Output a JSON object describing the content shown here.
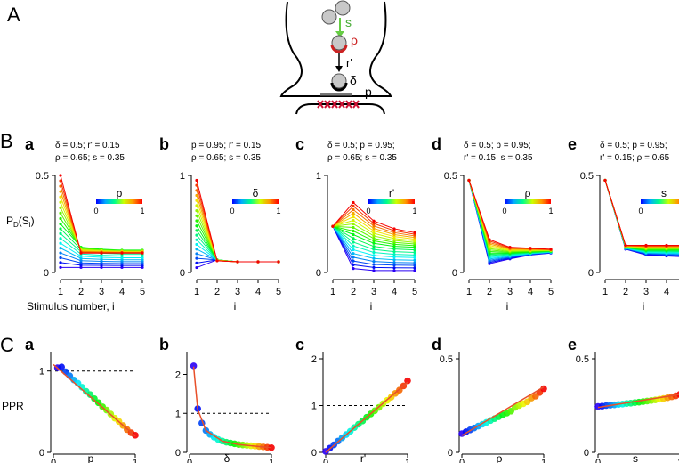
{
  "figure": {
    "panel_letters": {
      "A": "A",
      "B": "B",
      "C": "C"
    },
    "schematic": {
      "s": "s",
      "rho": "ρ",
      "r_prime": "r'",
      "delta": "δ",
      "p": "p"
    },
    "colors": {
      "s_arrow": "#66cc44",
      "rho_ring": "#cc2222",
      "receptor": "#cc1133",
      "vesicle": "#c8c8c8"
    }
  },
  "row_B": [
    {
      "letter": "a",
      "param_line1": "δ = 0.5; r' = 0.15",
      "param_line2": "ρ = 0.65; s = 0.35",
      "legend_label": "p",
      "legend_min": "0",
      "legend_max": "1",
      "xlabel": "Stimulus number, i",
      "ylabel": "P_D(S_i)",
      "ymax": 0.5,
      "yticks": [
        "0",
        "0.5"
      ],
      "xticks": [
        "1",
        "2",
        "3",
        "4",
        "5"
      ]
    },
    {
      "letter": "b",
      "param_line1": "p = 0.95; r' = 0.15",
      "param_line2": "ρ = 0.65; s = 0.35",
      "legend_label": "δ",
      "legend_min": "0",
      "legend_max": "1",
      "xlabel": "i",
      "ymax": 1,
      "yticks": [
        "0",
        "1"
      ],
      "xticks": [
        "1",
        "2",
        "3",
        "4",
        "5"
      ]
    },
    {
      "letter": "c",
      "param_line1": "δ = 0.5; p = 0.95;",
      "param_line2": "ρ = 0.65; s = 0.35",
      "legend_label": "r'",
      "legend_min": "0",
      "legend_max": "1",
      "xlabel": "i",
      "ymax": 1,
      "yticks": [
        "0",
        "1"
      ],
      "xticks": [
        "1",
        "2",
        "3",
        "4",
        "5"
      ]
    },
    {
      "letter": "d",
      "param_line1": "δ = 0.5; p = 0.95;",
      "param_line2": "r' = 0.15; s = 0.35",
      "legend_label": "ρ",
      "legend_min": "0",
      "legend_max": "1",
      "xlabel": "i",
      "ymax": 0.5,
      "yticks": [
        "0",
        "0.5"
      ],
      "xticks": [
        "1",
        "2",
        "3",
        "4",
        "5"
      ]
    },
    {
      "letter": "e",
      "param_line1": "δ = 0.5; p = 0.95;",
      "param_line2": "r' = 0.15; ρ = 0.65",
      "legend_label": "s",
      "legend_min": "0",
      "legend_max": "1",
      "xlabel": "i",
      "ymax": 0.5,
      "yticks": [
        "0",
        "0.5"
      ],
      "xticks": [
        "1",
        "2",
        "3",
        "4",
        "5"
      ]
    }
  ],
  "row_C": [
    {
      "letter": "a",
      "xlabel": "p",
      "ylabel": "PPR",
      "yticks": [
        "0",
        "1"
      ],
      "xticks": [
        "0",
        "1"
      ]
    },
    {
      "letter": "b",
      "xlabel": "δ",
      "yticks": [
        "0",
        "1",
        "2"
      ],
      "xticks": [
        "0",
        "1"
      ]
    },
    {
      "letter": "c",
      "xlabel": "r'",
      "yticks": [
        "0",
        "1",
        "2"
      ],
      "xticks": [
        "0",
        "1"
      ]
    },
    {
      "letter": "d",
      "xlabel": "ρ",
      "yticks": [
        "0",
        "0.5"
      ],
      "xticks": [
        "0",
        "1"
      ]
    },
    {
      "letter": "e",
      "xlabel": "s",
      "yticks": [
        "0",
        "0.5"
      ],
      "xticks": [
        "0",
        "1"
      ]
    }
  ],
  "chart_data": [
    {
      "id": "Ba",
      "type": "line",
      "title": "a",
      "xlabel": "Stimulus number, i",
      "ylabel": "P_D(S_i)",
      "x": [
        1,
        2,
        3,
        4,
        5
      ],
      "ylim": [
        0,
        0.5
      ],
      "color_param": "p",
      "color_range": [
        0,
        1
      ],
      "series": [
        {
          "name": "p=0.05",
          "values": [
            0.026,
            0.026,
            0.026,
            0.026,
            0.026
          ]
        },
        {
          "name": "p=0.5",
          "values": [
            0.25,
            0.13,
            0.12,
            0.115,
            0.115
          ]
        },
        {
          "name": "p=1.0",
          "values": [
            0.5,
            0.1,
            0.1,
            0.1,
            0.1
          ]
        }
      ]
    },
    {
      "id": "Bb",
      "type": "line",
      "title": "b",
      "xlabel": "i",
      "x": [
        1,
        2,
        3,
        4,
        5
      ],
      "ylim": [
        0,
        1
      ],
      "color_param": "δ",
      "color_range": [
        0,
        1
      ],
      "series": [
        {
          "name": "δ=0.05",
          "values": [
            0.05,
            0.13,
            0.11,
            0.11,
            0.11
          ]
        },
        {
          "name": "δ=0.5",
          "values": [
            0.48,
            0.13,
            0.11,
            0.11,
            0.11
          ]
        },
        {
          "name": "δ=1.0",
          "values": [
            0.95,
            0.12,
            0.11,
            0.11,
            0.11
          ]
        }
      ]
    },
    {
      "id": "Bc",
      "type": "line",
      "title": "c",
      "xlabel": "i",
      "x": [
        1,
        2,
        3,
        4,
        5
      ],
      "ylim": [
        0,
        1
      ],
      "color_param": "r'",
      "color_range": [
        0,
        1
      ],
      "series": [
        {
          "name": "r'=0.0",
          "values": [
            0.475,
            0.04,
            0.02,
            0.02,
            0.02
          ]
        },
        {
          "name": "r'=0.5",
          "values": [
            0.475,
            0.39,
            0.3,
            0.27,
            0.26
          ]
        },
        {
          "name": "r'=1.0",
          "values": [
            0.475,
            0.72,
            0.53,
            0.45,
            0.41
          ]
        }
      ]
    },
    {
      "id": "Bd",
      "type": "line",
      "title": "d",
      "xlabel": "i",
      "x": [
        1,
        2,
        3,
        4,
        5
      ],
      "ylim": [
        0,
        0.5
      ],
      "color_param": "ρ",
      "color_range": [
        0,
        1
      ],
      "series": [
        {
          "name": "ρ=0.0",
          "values": [
            0.475,
            0.045,
            0.07,
            0.09,
            0.1
          ]
        },
        {
          "name": "ρ=0.5",
          "values": [
            0.475,
            0.1,
            0.1,
            0.105,
            0.11
          ]
        },
        {
          "name": "ρ=1.0",
          "values": [
            0.475,
            0.17,
            0.13,
            0.125,
            0.12
          ]
        }
      ]
    },
    {
      "id": "Be",
      "type": "line",
      "title": "e",
      "xlabel": "i",
      "x": [
        1,
        2,
        3,
        4,
        5
      ],
      "ylim": [
        0,
        0.5
      ],
      "color_param": "s",
      "color_range": [
        0,
        1
      ],
      "series": [
        {
          "name": "s=0.0",
          "values": [
            0.475,
            0.12,
            0.09,
            0.085,
            0.08
          ]
        },
        {
          "name": "s=0.5",
          "values": [
            0.475,
            0.13,
            0.115,
            0.115,
            0.115
          ]
        },
        {
          "name": "s=1.0",
          "values": [
            0.475,
            0.14,
            0.14,
            0.14,
            0.14
          ]
        }
      ]
    },
    {
      "id": "Ca",
      "type": "scatter",
      "title": "a",
      "xlabel": "p",
      "ylabel": "PPR",
      "xlim": [
        0,
        1
      ],
      "ylim": [
        0,
        1.15
      ],
      "reference_line": 1,
      "x": [
        0.05,
        0.1,
        0.15,
        0.2,
        0.25,
        0.3,
        0.35,
        0.4,
        0.45,
        0.5,
        0.55,
        0.6,
        0.65,
        0.7,
        0.75,
        0.8,
        0.85,
        0.9,
        0.95,
        1.0
      ],
      "y": [
        1.04,
        1.05,
        0.99,
        0.94,
        0.89,
        0.85,
        0.8,
        0.75,
        0.71,
        0.66,
        0.61,
        0.56,
        0.52,
        0.47,
        0.42,
        0.38,
        0.33,
        0.28,
        0.24,
        0.21
      ],
      "fit": [
        [
          0,
          1.08
        ],
        [
          1,
          0.2
        ]
      ]
    },
    {
      "id": "Cb",
      "type": "scatter",
      "title": "b",
      "xlabel": "δ",
      "xlim": [
        0,
        1
      ],
      "ylim": [
        0,
        2.4
      ],
      "reference_line": 1,
      "x": [
        0.05,
        0.1,
        0.15,
        0.2,
        0.25,
        0.3,
        0.35,
        0.4,
        0.45,
        0.5,
        0.55,
        0.6,
        0.65,
        0.7,
        0.75,
        0.8,
        0.85,
        0.9,
        0.95,
        1.0
      ],
      "y": [
        2.22,
        1.12,
        0.75,
        0.56,
        0.46,
        0.39,
        0.33,
        0.29,
        0.26,
        0.24,
        0.22,
        0.2,
        0.19,
        0.18,
        0.17,
        0.16,
        0.15,
        0.14,
        0.13,
        0.12
      ],
      "fit": [
        [
          0.05,
          2.2
        ],
        [
          0.1,
          1.1
        ],
        [
          0.2,
          0.56
        ],
        [
          0.4,
          0.29
        ],
        [
          0.6,
          0.2
        ],
        [
          0.8,
          0.16
        ],
        [
          1.0,
          0.12
        ]
      ]
    },
    {
      "id": "Cc",
      "type": "scatter",
      "title": "c",
      "xlabel": "r'",
      "xlim": [
        0,
        1
      ],
      "ylim": [
        0,
        2
      ],
      "reference_line": 1,
      "x": [
        0.0,
        0.05,
        0.1,
        0.15,
        0.2,
        0.25,
        0.3,
        0.35,
        0.4,
        0.45,
        0.5,
        0.55,
        0.6,
        0.65,
        0.7,
        0.75,
        0.8,
        0.85,
        0.9,
        0.95,
        1.0
      ],
      "y": [
        0.02,
        0.09,
        0.16,
        0.24,
        0.31,
        0.38,
        0.45,
        0.53,
        0.6,
        0.67,
        0.75,
        0.82,
        0.89,
        0.96,
        1.04,
        1.11,
        1.18,
        1.26,
        1.33,
        1.42,
        1.53
      ],
      "fit": [
        [
          0,
          0.0
        ],
        [
          1,
          1.5
        ]
      ]
    },
    {
      "id": "Cd",
      "type": "scatter",
      "title": "d",
      "xlabel": "ρ",
      "xlim": [
        0,
        1
      ],
      "ylim": [
        0,
        0.5
      ],
      "x": [
        0.0,
        0.05,
        0.1,
        0.15,
        0.2,
        0.25,
        0.3,
        0.35,
        0.4,
        0.45,
        0.5,
        0.55,
        0.6,
        0.65,
        0.7,
        0.75,
        0.8,
        0.85,
        0.9,
        0.95,
        1.0
      ],
      "y": [
        0.1,
        0.11,
        0.12,
        0.13,
        0.14,
        0.15,
        0.16,
        0.17,
        0.18,
        0.19,
        0.2,
        0.21,
        0.22,
        0.24,
        0.25,
        0.26,
        0.27,
        0.29,
        0.3,
        0.32,
        0.34
      ],
      "fit": [
        [
          0,
          0.09
        ],
        [
          1,
          0.35
        ]
      ]
    },
    {
      "id": "Ce",
      "type": "scatter",
      "title": "e",
      "xlabel": "s",
      "xlim": [
        0,
        1
      ],
      "ylim": [
        0,
        0.5
      ],
      "x": [
        0.0,
        0.05,
        0.1,
        0.15,
        0.2,
        0.25,
        0.3,
        0.35,
        0.4,
        0.45,
        0.5,
        0.55,
        0.6,
        0.65,
        0.7,
        0.75,
        0.8,
        0.85,
        0.9,
        0.95,
        1.0
      ],
      "y": [
        0.245,
        0.247,
        0.25,
        0.252,
        0.254,
        0.256,
        0.258,
        0.261,
        0.263,
        0.266,
        0.268,
        0.271,
        0.274,
        0.277,
        0.28,
        0.284,
        0.288,
        0.292,
        0.297,
        0.302,
        0.31
      ],
      "fit": [
        [
          0,
          0.24
        ],
        [
          1,
          0.31
        ]
      ]
    }
  ]
}
